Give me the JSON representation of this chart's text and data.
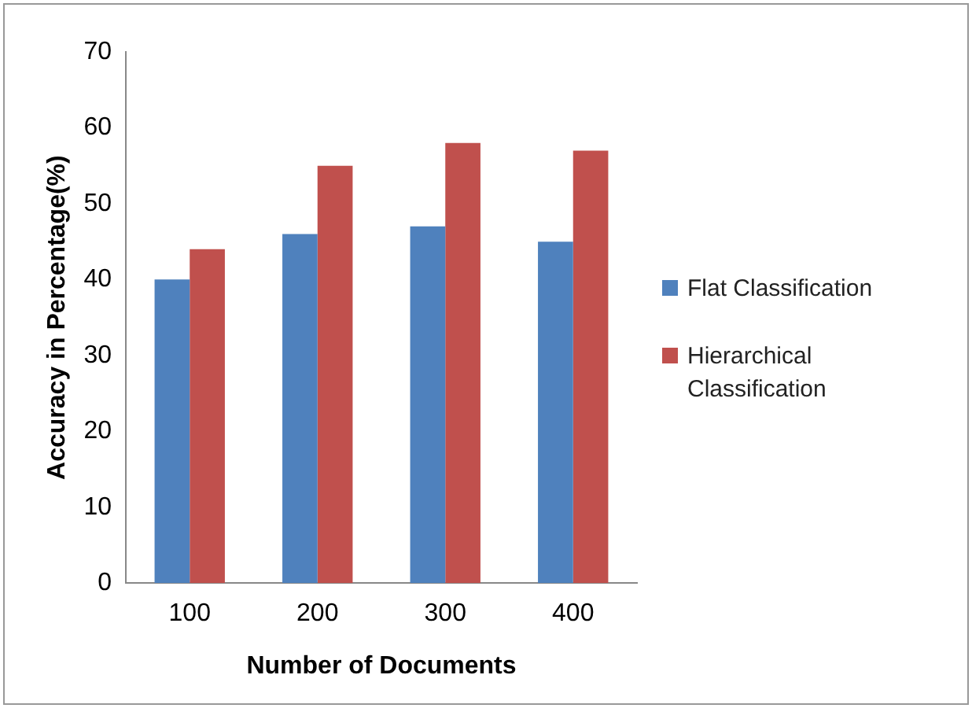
{
  "chart_data": {
    "type": "bar",
    "xlabel": "Number of Documents",
    "ylabel": "Accuracy in Percentage(%)",
    "categories": [
      "100",
      "200",
      "300",
      "400"
    ],
    "series": [
      {
        "name": "Flat Classification",
        "color": "#4f81bd",
        "values": [
          40,
          46,
          47,
          45
        ]
      },
      {
        "name": "Hierarchical Classification",
        "color": "#c0504d",
        "values": [
          44,
          55,
          58,
          57
        ]
      }
    ],
    "ylim": [
      0,
      70
    ],
    "yticks": [
      0,
      10,
      20,
      30,
      40,
      50,
      60,
      70
    ],
    "grid": false,
    "legend": "right"
  }
}
